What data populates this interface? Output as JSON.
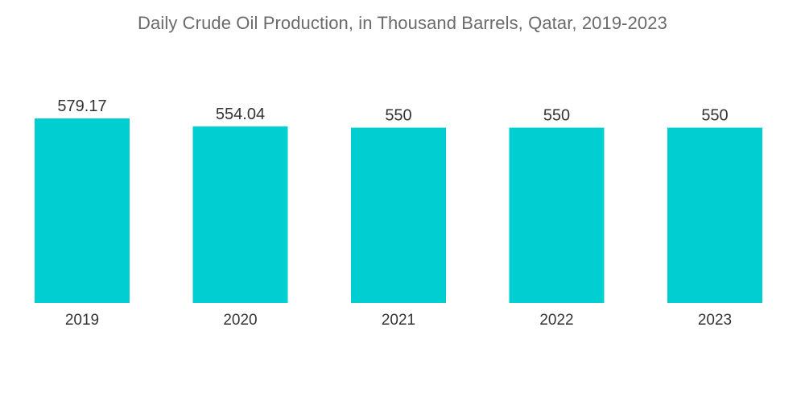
{
  "chart_data": {
    "type": "bar",
    "title": "Daily Crude Oil Production, in Thousand Barrels, Qatar, 2019-2023",
    "categories": [
      "2019",
      "2020",
      "2021",
      "2022",
      "2023"
    ],
    "values": [
      579.17,
      554.04,
      550,
      550,
      550
    ],
    "value_labels": [
      "579.17",
      "554.04",
      "550",
      "550",
      "550"
    ],
    "xlabel": "",
    "ylabel": "",
    "ylim": [
      0,
      600
    ],
    "grid": false,
    "legend": "none",
    "bar_color": "#00ced1"
  }
}
